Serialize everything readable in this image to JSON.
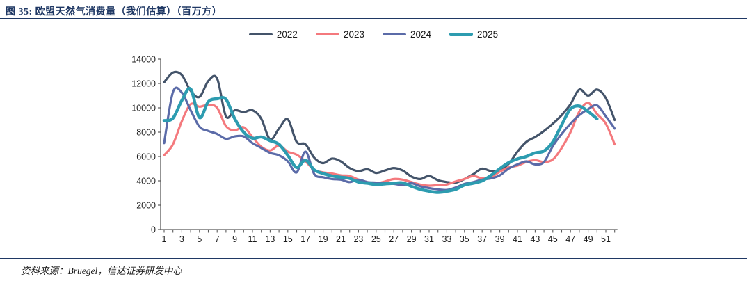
{
  "page": {
    "title": "图 35: 欧盟天然气消费量（我们估算）（百万方）",
    "source": "资料来源：Bruegel，信达证券研发中心"
  },
  "colors": {
    "title_navy": "#1f3864",
    "axis_gray": "#595959",
    "s2022": "#44546a",
    "s2023": "#f4797d",
    "s2024": "#5b6ba8",
    "s2025": "#2d9cb0"
  },
  "chart_data": {
    "type": "line",
    "title": "欧盟天然气消费量（我们估算）（百万方）",
    "xlabel": "",
    "ylabel": "",
    "x": [
      1,
      2,
      3,
      4,
      5,
      6,
      7,
      8,
      9,
      10,
      11,
      12,
      13,
      14,
      15,
      16,
      17,
      18,
      19,
      20,
      21,
      22,
      23,
      24,
      25,
      26,
      27,
      28,
      29,
      30,
      31,
      32,
      33,
      34,
      35,
      36,
      37,
      38,
      39,
      40,
      41,
      42,
      43,
      44,
      45,
      46,
      47,
      48,
      49,
      50,
      51,
      52
    ],
    "x_tick_labels": [
      1,
      3,
      5,
      7,
      9,
      11,
      13,
      15,
      17,
      19,
      21,
      23,
      25,
      27,
      29,
      31,
      33,
      35,
      37,
      39,
      41,
      43,
      45,
      47,
      49,
      51
    ],
    "y_ticks": [
      0,
      2000,
      4000,
      6000,
      8000,
      10000,
      12000,
      14000
    ],
    "ylim": [
      0,
      14000
    ],
    "grid": false,
    "legend_position": "top",
    "series": [
      {
        "name": "2022",
        "color": "#44546a",
        "width": 3.2,
        "values": [
          12100,
          12900,
          12700,
          11400,
          10900,
          12200,
          12400,
          9300,
          9800,
          9650,
          9800,
          9100,
          7400,
          8300,
          9050,
          7200,
          7000,
          5900,
          5450,
          5830,
          5600,
          5050,
          4800,
          4950,
          4650,
          4850,
          5050,
          4850,
          4350,
          4150,
          4400,
          4050,
          3900,
          3850,
          4150,
          4550,
          5000,
          4800,
          4900,
          5400,
          6400,
          7200,
          7600,
          8100,
          8700,
          9400,
          10300,
          11500,
          11000,
          11500,
          10800,
          9000
        ]
      },
      {
        "name": "2023",
        "color": "#f4797d",
        "width": 3.2,
        "values": [
          6100,
          7000,
          8900,
          10300,
          10100,
          10250,
          10000,
          8500,
          8150,
          8400,
          7600,
          6800,
          6500,
          6900,
          6400,
          6150,
          5600,
          4900,
          4700,
          4600,
          4450,
          4400,
          4100,
          3900,
          3800,
          3950,
          4150,
          4100,
          3900,
          3700,
          3600,
          3650,
          3700,
          3950,
          4150,
          4400,
          4200,
          4300,
          4750,
          5100,
          5250,
          5550,
          5700,
          5550,
          5750,
          6700,
          8000,
          9700,
          10400,
          9500,
          8700,
          7000
        ]
      },
      {
        "name": "2024",
        "color": "#5b6ba8",
        "width": 3.2,
        "values": [
          7100,
          11300,
          11250,
          9800,
          8450,
          8100,
          7850,
          7450,
          7650,
          7650,
          7100,
          6700,
          6300,
          6100,
          5600,
          4700,
          6400,
          4550,
          4300,
          4150,
          4100,
          3900,
          4100,
          3900,
          3850,
          3800,
          3750,
          3650,
          3800,
          3550,
          3400,
          3300,
          3250,
          3450,
          3750,
          3900,
          4100,
          4200,
          4450,
          5000,
          5350,
          5600,
          5350,
          5550,
          6850,
          7850,
          8700,
          9400,
          9900,
          10200,
          9300,
          8300
        ]
      },
      {
        "name": "2025",
        "color": "#2d9cb0",
        "width": 4.4,
        "values": [
          8950,
          9150,
          10600,
          11550,
          9200,
          10500,
          10750,
          10700,
          9100,
          8000,
          7500,
          7600,
          7300,
          7000,
          6100,
          5100,
          5700,
          4900,
          4600,
          4400,
          4300,
          4200,
          3900,
          3800,
          3700,
          3750,
          3800,
          3830,
          3550,
          3300,
          3150,
          3050,
          3150,
          3300,
          3650,
          3800,
          4000,
          4450,
          5000,
          5500,
          5800,
          6000,
          6300,
          6450,
          7200,
          8600,
          9900,
          10150,
          9700,
          9100,
          null,
          null
        ]
      }
    ]
  }
}
